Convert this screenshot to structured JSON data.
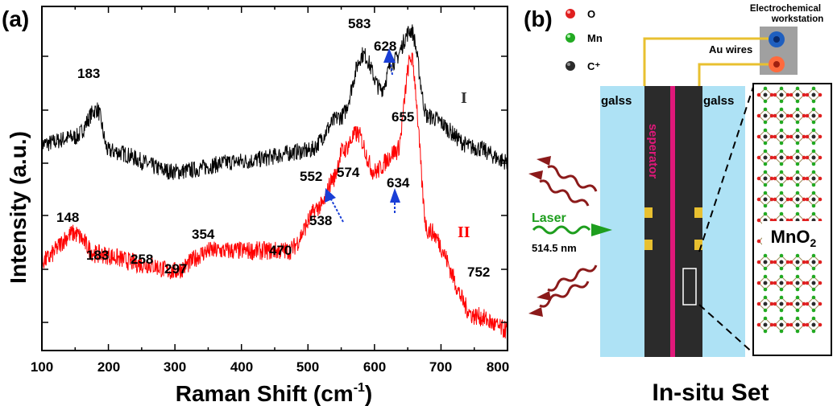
{
  "panel_a": {
    "label": "(a)",
    "chart_data": {
      "type": "line",
      "xlabel_main": "Raman Shift (cm",
      "xlabel_sup": "-1",
      "xlabel_end": ")",
      "ylabel": "Intensity (a.u.)",
      "xlim": [
        100,
        800
      ],
      "x_ticks": [
        "100",
        "200",
        "300",
        "400",
        "500",
        "600",
        "700",
        "800"
      ],
      "series": [
        {
          "name": "I",
          "color": "#000000",
          "key_points": [
            [
              100,
              0.6
            ],
            [
              150,
              0.62
            ],
            [
              183,
              0.7
            ],
            [
              200,
              0.58
            ],
            [
              300,
              0.52
            ],
            [
              400,
              0.55
            ],
            [
              500,
              0.58
            ],
            [
              550,
              0.68
            ],
            [
              583,
              0.86
            ],
            [
              610,
              0.76
            ],
            [
              628,
              0.84
            ],
            [
              655,
              0.93
            ],
            [
              680,
              0.68
            ],
            [
              750,
              0.59
            ],
            [
              800,
              0.55
            ]
          ]
        },
        {
          "name": "II",
          "color": "#ff0000",
          "key_points": [
            [
              100,
              0.26
            ],
            [
              148,
              0.34
            ],
            [
              183,
              0.28
            ],
            [
              258,
              0.25
            ],
            [
              297,
              0.23
            ],
            [
              354,
              0.29
            ],
            [
              470,
              0.29
            ],
            [
              520,
              0.42
            ],
            [
              538,
              0.5
            ],
            [
              552,
              0.58
            ],
            [
              574,
              0.63
            ],
            [
              600,
              0.52
            ],
            [
              634,
              0.58
            ],
            [
              655,
              0.85
            ],
            [
              680,
              0.35
            ],
            [
              752,
              0.1
            ],
            [
              800,
              0.06
            ]
          ]
        }
      ],
      "annotations": [
        "183",
        "583",
        "628",
        "655",
        "148",
        "183",
        "258",
        "297",
        "354",
        "470",
        "552",
        "574",
        "538",
        "634",
        "752"
      ]
    }
  },
  "panel_b": {
    "label": "(b)",
    "legend": [
      {
        "name": "O",
        "color": "#e02020"
      },
      {
        "name": "Mn",
        "color": "#22aa22"
      },
      {
        "name": "C⁺",
        "color": "#333333"
      }
    ],
    "workstation_line1": "Electrochemical",
    "workstation_line2": "workstation",
    "au_wires": "Au wires",
    "glass_left": "galss",
    "glass_right": "galss",
    "separator": "seperator",
    "laser": "Laser",
    "wavelength": "514.5 nm",
    "material_main": "MnO",
    "material_sub": "2",
    "caption": "In-situ Set",
    "colors": {
      "glass": "#aee2f5",
      "cell": "#2b2b2b",
      "separator": "#e0187a",
      "wire": "#e8c030",
      "laser": "#1e9e1e",
      "scatter": "#8b1a1a",
      "workstation": "#a0a0a0",
      "terminal_blue": "#1f5fbf",
      "terminal_red": "#ff6a3d"
    }
  }
}
